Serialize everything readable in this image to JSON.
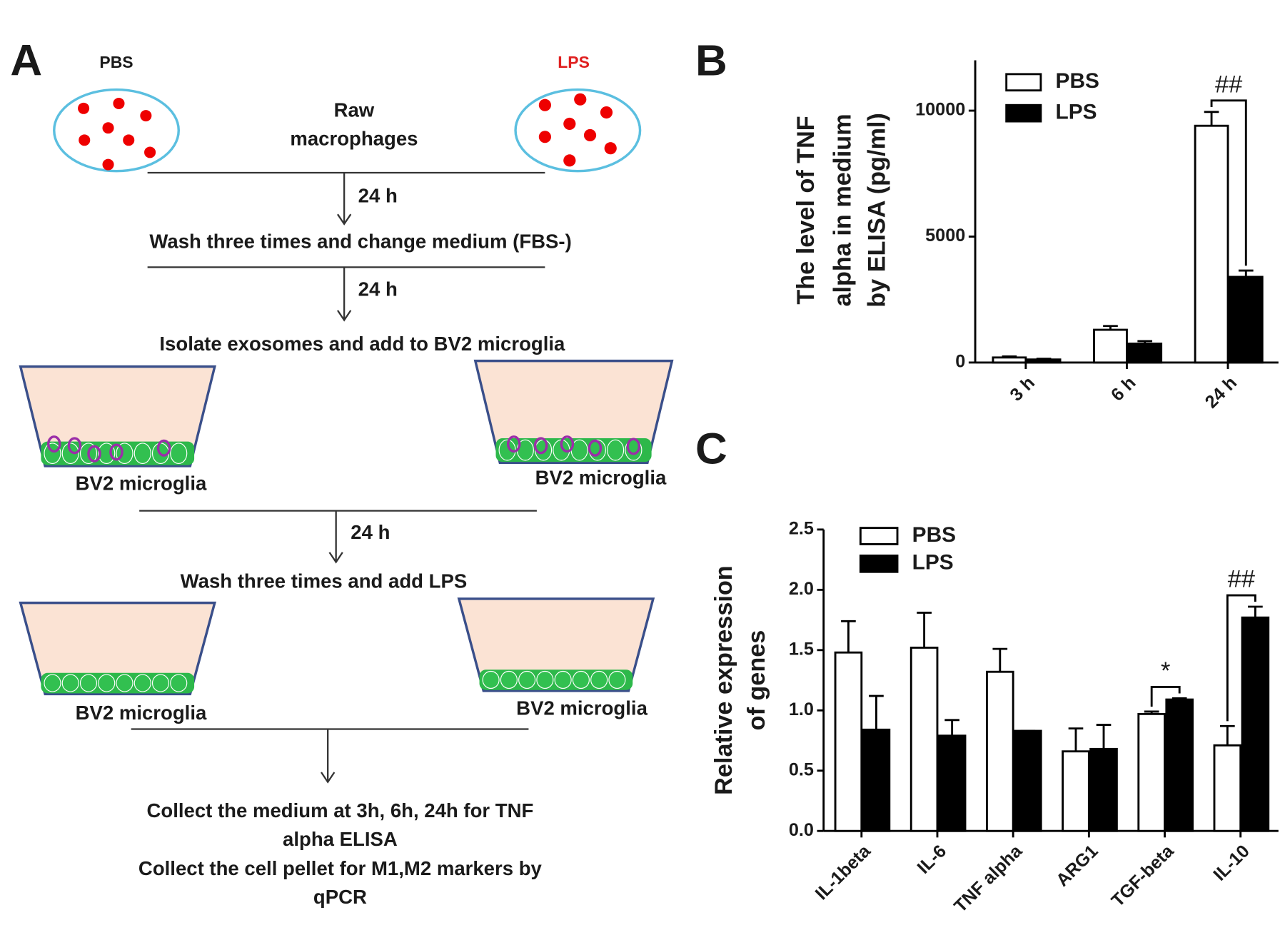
{
  "panel_labels": [
    "A",
    "B",
    "C"
  ],
  "diagram": {
    "dish_labels": [
      "PBS",
      "LPS"
    ],
    "cell_type": [
      "Raw",
      "macrophages"
    ],
    "durations": [
      "24 h",
      "24 h",
      "24 h"
    ],
    "steps": [
      "Wash three times and change medium (FBS-)",
      "Isolate exosomes and add to BV2 microglia",
      "Wash three times and add LPS"
    ],
    "well_labels": [
      "BV2 microglia",
      "BV2 microglia",
      "BV2 microglia",
      "BV2 microglia"
    ],
    "final_steps": [
      "Collect the medium at 3h, 6h, 24h for TNF",
      "alpha ELISA",
      "Collect the cell pellet for M1,M2 markers by",
      "qPCR"
    ]
  },
  "chart_data": [
    {
      "type": "bar",
      "ylabel": [
        "The level of TNF",
        "alpha in medium",
        "by ELISA (pg/ml)"
      ],
      "categories": [
        "3 h",
        "6 h",
        "24 h"
      ],
      "series": [
        {
          "name": "PBS",
          "color": "#ffffff",
          "values": [
            200,
            1300,
            9400
          ],
          "errors": [
            40,
            150,
            550
          ]
        },
        {
          "name": "LPS",
          "color": "#000000",
          "values": [
            120,
            750,
            3400
          ],
          "errors": [
            30,
            100,
            250
          ]
        }
      ],
      "ylim": [
        0,
        12000
      ],
      "yticks": [
        0,
        5000,
        10000
      ],
      "legend": "upper left",
      "annotations": [
        {
          "label": "##",
          "category": "24 h"
        }
      ]
    },
    {
      "type": "bar",
      "ylabel": [
        "Relative expression",
        "of genes"
      ],
      "categories": [
        "IL-1beta",
        "IL-6",
        "TNF alpha",
        "ARG1",
        "TGF-beta",
        "IL-10"
      ],
      "series": [
        {
          "name": "PBS",
          "color": "#ffffff",
          "values": [
            1.48,
            1.52,
            1.32,
            0.66,
            0.97,
            0.71
          ],
          "errors": [
            0.26,
            0.29,
            0.19,
            0.19,
            0.02,
            0.16
          ]
        },
        {
          "name": "LPS",
          "color": "#000000",
          "values": [
            0.84,
            0.79,
            0.83,
            0.68,
            1.09,
            1.77
          ],
          "errors": [
            0.28,
            0.13,
            0,
            0.2,
            0.01,
            0.09
          ]
        }
      ],
      "ylim": [
        0,
        2.5
      ],
      "yticks": [
        {
          "value": 0,
          "label": "0.0"
        },
        {
          "value": 0.5,
          "label": "0.5"
        },
        {
          "value": 1,
          "label": "1.0"
        },
        {
          "value": 1.5,
          "label": "1.5"
        },
        {
          "value": 2,
          "label": "2.0"
        },
        {
          "value": 2.5,
          "label": "2.5"
        }
      ],
      "legend": "upper left",
      "annotations": [
        {
          "label": "*",
          "category": "TGF-beta"
        },
        {
          "label": "##",
          "category": "IL-10"
        }
      ]
    }
  ]
}
